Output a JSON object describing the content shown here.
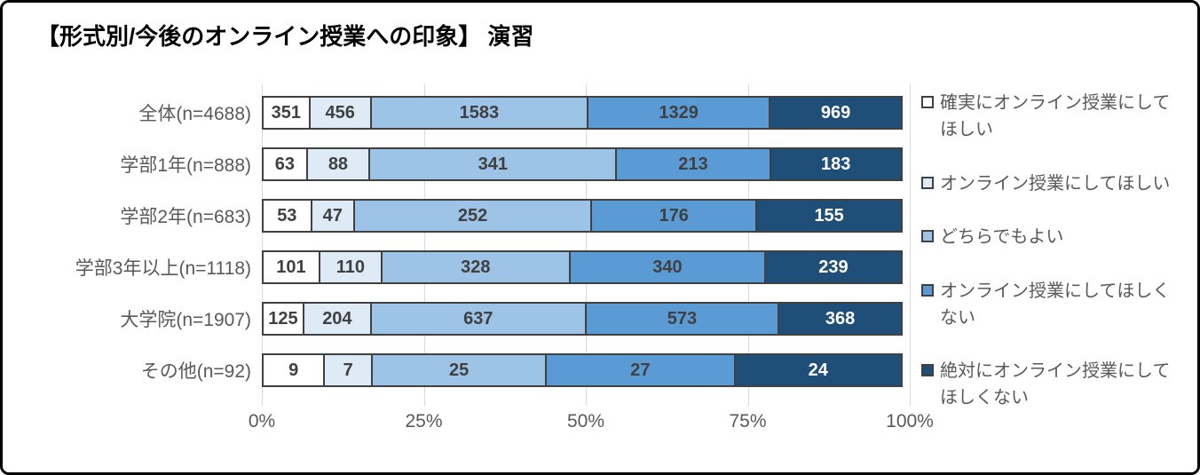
{
  "chart_data": {
    "type": "bar",
    "stacked": true,
    "orientation": "horizontal",
    "percent_stacked": true,
    "title": "【形式別/今後のオンライン授業への印象】 演習",
    "categories": [
      "全体(n=4688)",
      "学部1年(n=888)",
      "学部2年(n=683)",
      "学部3年以上(n=1118)",
      "大学院(n=1907)",
      "その他(n=92)"
    ],
    "series": [
      {
        "name": "確実にオンライン授業にしてほしい",
        "color": "#ffffff",
        "label_color": "#404040",
        "values": [
          351,
          63,
          53,
          101,
          125,
          9
        ]
      },
      {
        "name": "オンライン授業にしてほしい",
        "color": "#deebf7",
        "label_color": "#404040",
        "values": [
          456,
          88,
          47,
          110,
          204,
          7
        ]
      },
      {
        "name": "どちらでもよい",
        "color": "#9dc3e6",
        "label_color": "#404040",
        "values": [
          1583,
          341,
          252,
          328,
          637,
          25
        ]
      },
      {
        "name": "オンライン授業にしてほしくない",
        "color": "#5b9bd5",
        "label_color": "#404040",
        "values": [
          1329,
          213,
          176,
          340,
          573,
          27
        ]
      },
      {
        "name": "絶対にオンライン授業にしてほしくない",
        "color": "#1f4e79",
        "label_color": "#ffffff",
        "values": [
          969,
          183,
          155,
          239,
          368,
          24
        ]
      }
    ],
    "x_ticks": [
      "0%",
      "25%",
      "50%",
      "75%",
      "100%"
    ],
    "xlim": [
      0,
      100
    ],
    "grid": true,
    "gridline_color": "#d9d9d9",
    "segment_border_color": "#404040",
    "legend_position": "right"
  }
}
